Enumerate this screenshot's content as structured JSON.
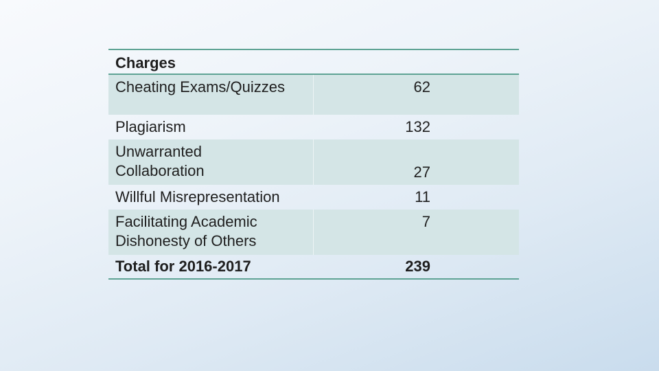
{
  "table": {
    "header": "Charges",
    "rows": [
      {
        "label": "Cheating Exams/Quizzes",
        "value": "62"
      },
      {
        "label": "Plagiarism",
        "value": "132"
      },
      {
        "label": "Unwarranted Collaboration",
        "value": "27"
      },
      {
        "label": "Willful Misrepresentation",
        "value": "11"
      },
      {
        "label": "Facilitating Academic Dishonesty of Others",
        "value": "7"
      }
    ],
    "total": {
      "label": "Total for 2016-2017",
      "value": "239"
    }
  }
}
